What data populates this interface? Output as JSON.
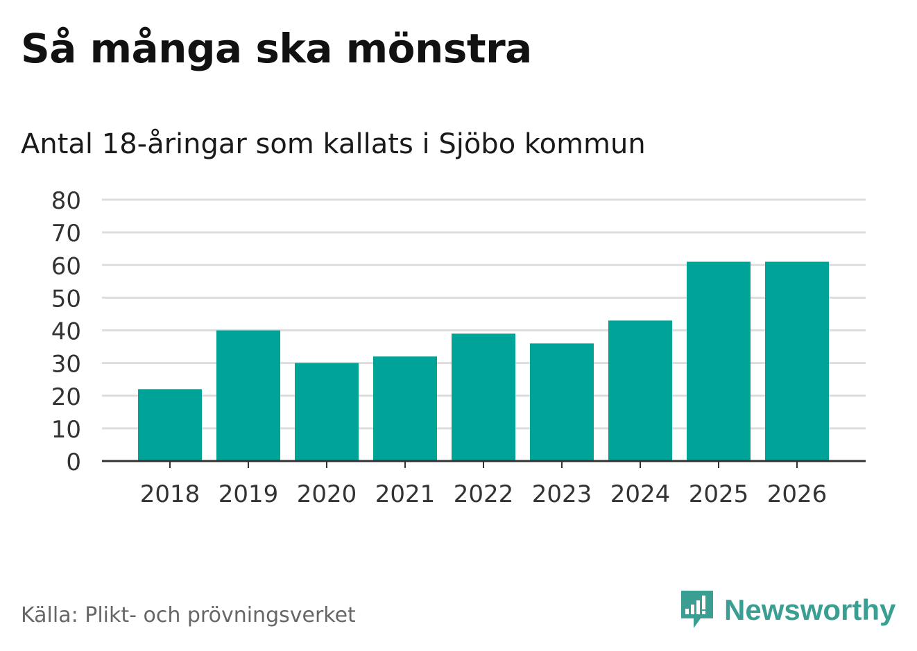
{
  "header": {
    "title": "Så många ska mönstra",
    "subtitle": "Antal 18-åringar som kallats i Sjöbo kommun"
  },
  "footer": {
    "source": "Källa: Plikt- och prövningsverket",
    "brand": "Newsworthy"
  },
  "colors": {
    "bar": "#00A398",
    "brand": "#3A9E92",
    "grid": "#DDDDDD",
    "axis": "#333333"
  },
  "icons": {
    "logo": "newsworthy-logo-icon"
  },
  "chart_data": {
    "type": "bar",
    "title": "Så många ska mönstra",
    "subtitle": "Antal 18-åringar som kallats i Sjöbo kommun",
    "xlabel": "",
    "ylabel": "",
    "categories": [
      "2018",
      "2019",
      "2020",
      "2021",
      "2022",
      "2023",
      "2024",
      "2025",
      "2026"
    ],
    "values": [
      22,
      40,
      30,
      32,
      39,
      36,
      43,
      61,
      61
    ],
    "ylim": [
      0,
      80
    ],
    "yticks": [
      0,
      10,
      20,
      30,
      40,
      50,
      60,
      70,
      80
    ],
    "grid": true
  }
}
